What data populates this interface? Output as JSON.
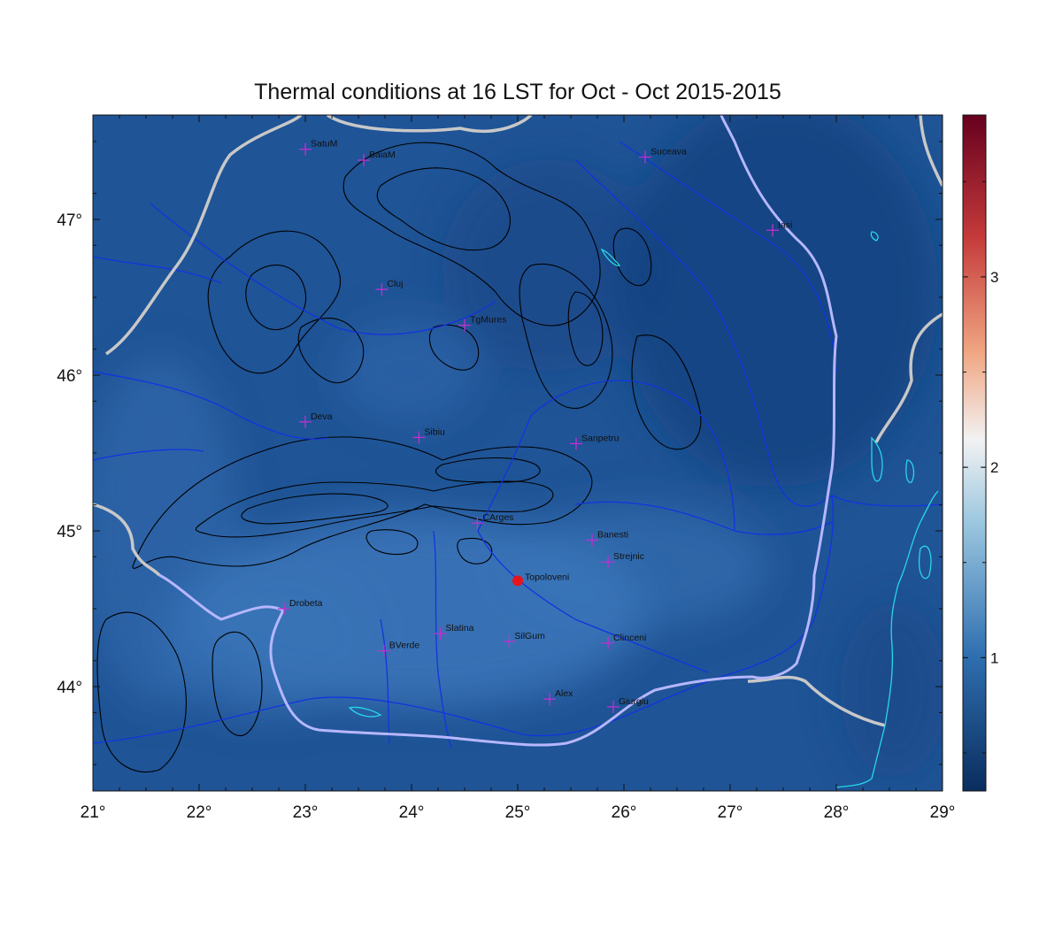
{
  "title": "Thermal conditions at 16 LST for Oct - Oct  2015-2015",
  "axes": {
    "x_ticks": [
      "21°",
      "22°",
      "23°",
      "24°",
      "25°",
      "26°",
      "27°",
      "28°",
      "29°"
    ],
    "y_ticks": [
      "44°",
      "45°",
      "46°",
      "47°"
    ],
    "lon_range": [
      21,
      29
    ],
    "lat_range": [
      43.33,
      47.67
    ]
  },
  "colorbar": {
    "ticks": [
      "1",
      "2",
      "3"
    ],
    "tick_values": [
      1,
      2,
      3
    ],
    "range": [
      0.3,
      3.85
    ],
    "colors": [
      "#0a2d5e",
      "#2f6fb0",
      "#9dc8e0",
      "#f2f2f2",
      "#f0a582",
      "#c43a3a",
      "#67001f"
    ]
  },
  "field_colors": {
    "base": "#1f5496",
    "light": "#3a74b8",
    "dark": "#133f7c"
  },
  "stations": [
    {
      "name": "SatuM",
      "lon": 23.0,
      "lat": 47.45
    },
    {
      "name": "BaiaM",
      "lon": 23.55,
      "lat": 47.38
    },
    {
      "name": "Suceava",
      "lon": 26.2,
      "lat": 47.4
    },
    {
      "name": "Iasi",
      "lon": 27.4,
      "lat": 46.93
    },
    {
      "name": "Cluj",
      "lon": 23.72,
      "lat": 46.55
    },
    {
      "name": "TgMures",
      "lon": 24.5,
      "lat": 46.32
    },
    {
      "name": "Deva",
      "lon": 23.0,
      "lat": 45.7
    },
    {
      "name": "Sibiu",
      "lon": 24.07,
      "lat": 45.6
    },
    {
      "name": "Sanpetru",
      "lon": 25.55,
      "lat": 45.56
    },
    {
      "name": "CArges",
      "lon": 24.62,
      "lat": 45.05
    },
    {
      "name": "Banesti",
      "lon": 25.7,
      "lat": 44.94
    },
    {
      "name": "Strejnic",
      "lon": 25.85,
      "lat": 44.8
    },
    {
      "name": "Drobeta",
      "lon": 22.8,
      "lat": 44.5
    },
    {
      "name": "Slatina",
      "lon": 24.27,
      "lat": 44.34
    },
    {
      "name": "SilGum",
      "lon": 24.92,
      "lat": 44.29
    },
    {
      "name": "Clinceni",
      "lon": 25.85,
      "lat": 44.28
    },
    {
      "name": "BVerde",
      "lon": 23.74,
      "lat": 44.23
    },
    {
      "name": "Alex",
      "lon": 25.3,
      "lat": 43.92
    },
    {
      "name": "Giurgiu",
      "lon": 25.9,
      "lat": 43.87
    }
  ],
  "highlight": {
    "name": "Topoloveni",
    "lon": 25.0,
    "lat": 44.68,
    "color": "#e8141c"
  },
  "line_colors": {
    "border": "#c8c8c8",
    "river": "#1433e0",
    "romania_border": "#b7b7ff",
    "coast": "#28d7e6",
    "contour": "#000000",
    "station_marker": "#c030d0"
  }
}
